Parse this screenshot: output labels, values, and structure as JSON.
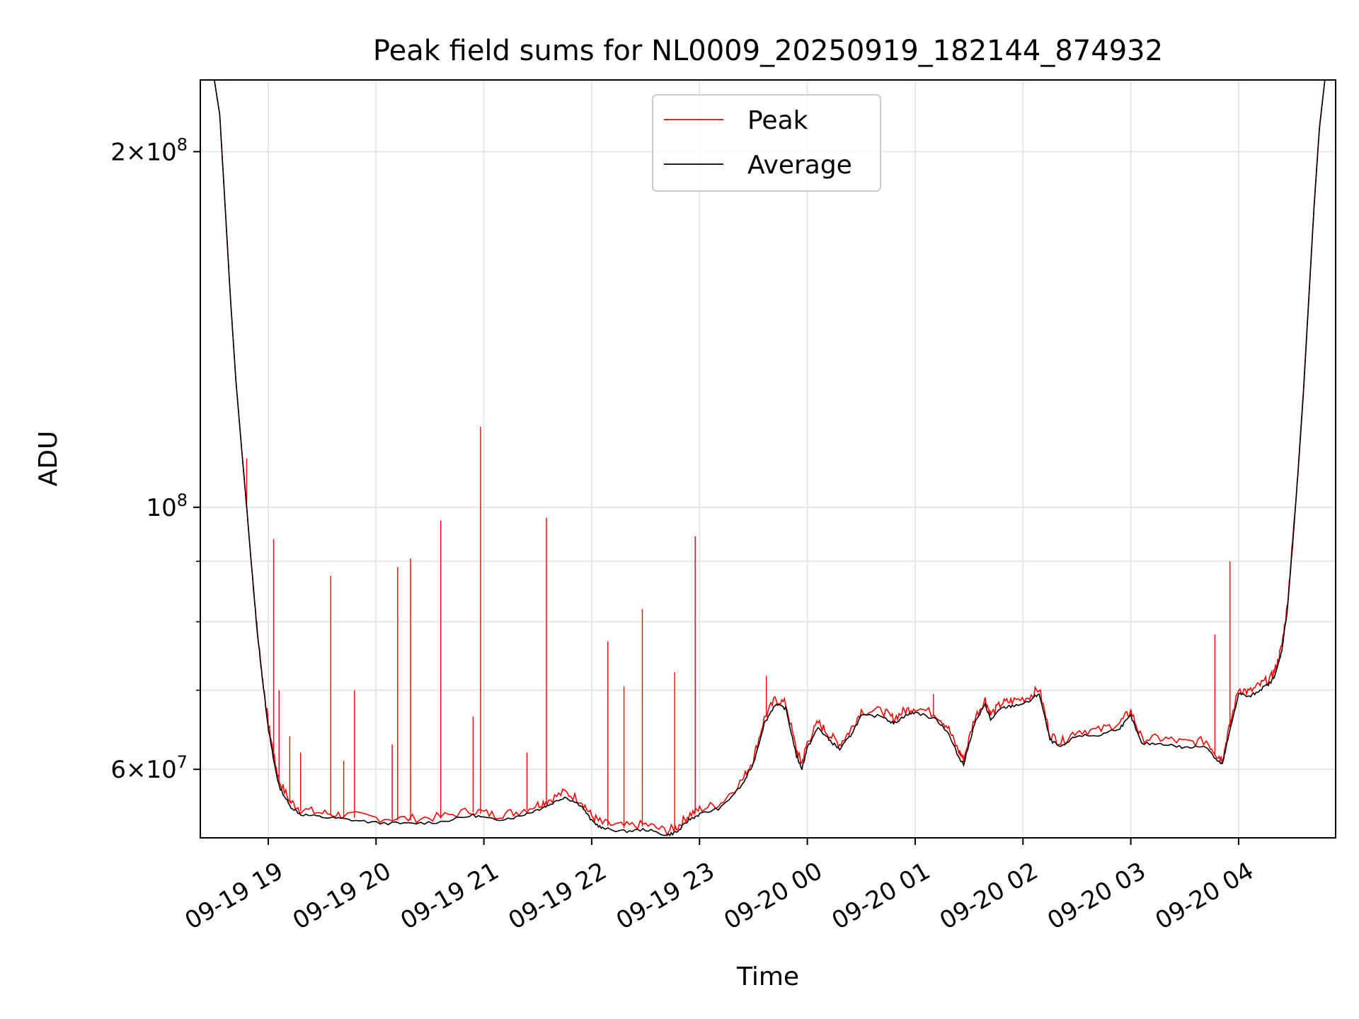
{
  "chart_data": {
    "type": "line",
    "title": "Peak field sums for NL0009_20250919_182144_874932",
    "xlabel": "Time",
    "ylabel": "ADU",
    "yscale": "log",
    "grid": true,
    "legend": {
      "placement": "top-center",
      "entries": [
        "Peak",
        "Average"
      ]
    },
    "xlim": [
      18.37,
      28.9
    ],
    "ylim": [
      52500000,
      230000000
    ],
    "x_ticks": [
      {
        "x": 19,
        "label": "09-19 19"
      },
      {
        "x": 20,
        "label": "09-19 20"
      },
      {
        "x": 21,
        "label": "09-19 21"
      },
      {
        "x": 22,
        "label": "09-19 22"
      },
      {
        "x": 23,
        "label": "09-19 23"
      },
      {
        "x": 24,
        "label": "09-20 00"
      },
      {
        "x": 25,
        "label": "09-20 01"
      },
      {
        "x": 26,
        "label": "09-20 02"
      },
      {
        "x": 27,
        "label": "09-20 03"
      },
      {
        "x": 28,
        "label": "09-20 04"
      }
    ],
    "y_major_ticks": [
      {
        "y": 60000000,
        "base": "6×10",
        "exp": "7"
      },
      {
        "y": 100000000,
        "base": "10",
        "exp": "8"
      },
      {
        "y": 200000000,
        "base": "2×10",
        "exp": "8"
      }
    ],
    "y_minor_ticks": [
      70000000,
      80000000,
      90000000
    ],
    "series": [
      {
        "name": "Peak",
        "color": "#ff0000",
        "points": [
          [
            18.5,
            230000000
          ],
          [
            18.55,
            215000000
          ],
          [
            18.6,
            180000000
          ],
          [
            18.65,
            150000000
          ],
          [
            18.7,
            128000000
          ],
          [
            18.75,
            113000000
          ],
          [
            18.8,
            100000000
          ],
          [
            18.85,
            88000000
          ],
          [
            18.9,
            78000000
          ],
          [
            18.95,
            71000000
          ],
          [
            19.0,
            65500000
          ],
          [
            19.05,
            61500000
          ],
          [
            19.1,
            58500000
          ],
          [
            19.2,
            56200000
          ],
          [
            19.3,
            55300000
          ],
          [
            19.5,
            54900000
          ],
          [
            19.7,
            54700000
          ],
          [
            20.0,
            54400000
          ],
          [
            20.3,
            54300000
          ],
          [
            20.6,
            54500000
          ],
          [
            20.9,
            55200000
          ],
          [
            21.1,
            54700000
          ],
          [
            21.3,
            55000000
          ],
          [
            21.5,
            55800000
          ],
          [
            21.6,
            56300000
          ],
          [
            21.75,
            57200000
          ],
          [
            21.9,
            56300000
          ],
          [
            22.0,
            54600000
          ],
          [
            22.1,
            53800000
          ],
          [
            22.3,
            53500000
          ],
          [
            22.5,
            53700000
          ],
          [
            22.7,
            53000000
          ],
          [
            22.8,
            53500000
          ],
          [
            22.9,
            54700000
          ],
          [
            23.0,
            55300000
          ],
          [
            23.2,
            56000000
          ],
          [
            23.4,
            58600000
          ],
          [
            23.5,
            61000000
          ],
          [
            23.6,
            66000000
          ],
          [
            23.7,
            68500000
          ],
          [
            23.8,
            68000000
          ],
          [
            23.9,
            62000000
          ],
          [
            23.95,
            60500000
          ],
          [
            24.0,
            63000000
          ],
          [
            24.1,
            65500000
          ],
          [
            24.2,
            64000000
          ],
          [
            24.3,
            62800000
          ],
          [
            24.4,
            64500000
          ],
          [
            24.5,
            67000000
          ],
          [
            24.7,
            67000000
          ],
          [
            24.8,
            66000000
          ],
          [
            24.9,
            67000000
          ],
          [
            25.0,
            67500000
          ],
          [
            25.2,
            66500000
          ],
          [
            25.3,
            65000000
          ],
          [
            25.4,
            62000000
          ],
          [
            25.45,
            61000000
          ],
          [
            25.55,
            66000000
          ],
          [
            25.65,
            68500000
          ],
          [
            25.7,
            66500000
          ],
          [
            25.8,
            68000000
          ],
          [
            25.9,
            68300000
          ],
          [
            26.05,
            68800000
          ],
          [
            26.15,
            70000000
          ],
          [
            26.25,
            64000000
          ],
          [
            26.35,
            63000000
          ],
          [
            26.5,
            64500000
          ],
          [
            26.7,
            64500000
          ],
          [
            26.9,
            65500000
          ],
          [
            27.0,
            67000000
          ],
          [
            27.1,
            63500000
          ],
          [
            27.3,
            63500000
          ],
          [
            27.5,
            63000000
          ],
          [
            27.7,
            63200000
          ],
          [
            27.8,
            61500000
          ],
          [
            27.85,
            61000000
          ],
          [
            27.9,
            64000000
          ],
          [
            28.0,
            70000000
          ],
          [
            28.1,
            69500000
          ],
          [
            28.2,
            70500000
          ],
          [
            28.3,
            71500000
          ],
          [
            28.35,
            73000000
          ],
          [
            28.4,
            76000000
          ],
          [
            28.45,
            82000000
          ],
          [
            28.5,
            93000000
          ],
          [
            28.55,
            107000000
          ],
          [
            28.6,
            125000000
          ],
          [
            28.65,
            150000000
          ],
          [
            28.7,
            180000000
          ],
          [
            28.75,
            210000000
          ],
          [
            28.8,
            230000000
          ]
        ],
        "spikes": [
          [
            18.8,
            110000000
          ],
          [
            19.05,
            94000000
          ],
          [
            19.1,
            70000000
          ],
          [
            19.2,
            64000000
          ],
          [
            19.3,
            62000000
          ],
          [
            19.58,
            87500000
          ],
          [
            19.7,
            61000000
          ],
          [
            19.8,
            70000000
          ],
          [
            20.15,
            63000000
          ],
          [
            20.2,
            89000000
          ],
          [
            20.32,
            90500000
          ],
          [
            20.6,
            97500000
          ],
          [
            20.6,
            60000000
          ],
          [
            20.9,
            66500000
          ],
          [
            20.97,
            117000000
          ],
          [
            21.4,
            62000000
          ],
          [
            21.58,
            98000000
          ],
          [
            22.15,
            77000000
          ],
          [
            22.3,
            70500000
          ],
          [
            22.47,
            82000000
          ],
          [
            22.77,
            72500000
          ],
          [
            22.96,
            94500000
          ],
          [
            23.62,
            72000000
          ],
          [
            25.17,
            69500000
          ],
          [
            27.78,
            78000000
          ],
          [
            27.92,
            90000000
          ]
        ]
      },
      {
        "name": "Average",
        "color": "#000000",
        "points": [
          [
            18.5,
            230000000
          ],
          [
            18.55,
            215000000
          ],
          [
            18.6,
            180000000
          ],
          [
            18.65,
            150000000
          ],
          [
            18.7,
            128000000
          ],
          [
            18.75,
            113000000
          ],
          [
            18.8,
            100000000
          ],
          [
            18.85,
            88000000
          ],
          [
            18.9,
            78000000
          ],
          [
            18.95,
            71000000
          ],
          [
            19.0,
            65000000
          ],
          [
            19.05,
            61000000
          ],
          [
            19.1,
            58000000
          ],
          [
            19.2,
            55800000
          ],
          [
            19.3,
            54900000
          ],
          [
            19.5,
            54600000
          ],
          [
            19.7,
            54400000
          ],
          [
            20.0,
            54000000
          ],
          [
            20.3,
            53900000
          ],
          [
            20.6,
            54100000
          ],
          [
            20.9,
            54800000
          ],
          [
            21.1,
            54300000
          ],
          [
            21.3,
            54600000
          ],
          [
            21.5,
            55400000
          ],
          [
            21.6,
            55900000
          ],
          [
            21.75,
            56800000
          ],
          [
            21.9,
            55900000
          ],
          [
            22.0,
            54200000
          ],
          [
            22.1,
            53400000
          ],
          [
            22.3,
            53100000
          ],
          [
            22.5,
            53300000
          ],
          [
            22.7,
            52700000
          ],
          [
            22.8,
            53100000
          ],
          [
            22.9,
            54300000
          ],
          [
            23.0,
            54900000
          ],
          [
            23.2,
            55600000
          ],
          [
            23.4,
            58200000
          ],
          [
            23.5,
            60600000
          ],
          [
            23.6,
            65500000
          ],
          [
            23.7,
            68000000
          ],
          [
            23.8,
            67500000
          ],
          [
            23.9,
            61500000
          ],
          [
            23.95,
            60000000
          ],
          [
            24.0,
            62500000
          ],
          [
            24.1,
            65000000
          ],
          [
            24.2,
            63500000
          ],
          [
            24.3,
            62300000
          ],
          [
            24.4,
            64000000
          ],
          [
            24.5,
            66500000
          ],
          [
            24.7,
            66500000
          ],
          [
            24.8,
            65500000
          ],
          [
            24.9,
            66500000
          ],
          [
            25.0,
            67000000
          ],
          [
            25.2,
            66000000
          ],
          [
            25.3,
            64500000
          ],
          [
            25.4,
            61500000
          ],
          [
            25.45,
            60500000
          ],
          [
            25.55,
            65500000
          ],
          [
            25.65,
            68000000
          ],
          [
            25.7,
            66000000
          ],
          [
            25.8,
            67500000
          ],
          [
            25.9,
            67800000
          ],
          [
            26.05,
            68300000
          ],
          [
            26.15,
            69500000
          ],
          [
            26.25,
            63500000
          ],
          [
            26.35,
            62500000
          ],
          [
            26.5,
            64000000
          ],
          [
            26.7,
            64000000
          ],
          [
            26.9,
            65000000
          ],
          [
            27.0,
            66500000
          ],
          [
            27.1,
            63000000
          ],
          [
            27.3,
            63000000
          ],
          [
            27.5,
            62500000
          ],
          [
            27.7,
            62700000
          ],
          [
            27.8,
            61000000
          ],
          [
            27.85,
            60500000
          ],
          [
            27.9,
            63500000
          ],
          [
            28.0,
            69500000
          ],
          [
            28.1,
            69000000
          ],
          [
            28.2,
            70000000
          ],
          [
            28.3,
            71000000
          ],
          [
            28.35,
            72500000
          ],
          [
            28.4,
            75500000
          ],
          [
            28.45,
            81500000
          ],
          [
            28.5,
            92500000
          ],
          [
            28.55,
            106500000
          ],
          [
            28.6,
            124500000
          ],
          [
            28.65,
            149500000
          ],
          [
            28.7,
            179500000
          ],
          [
            28.75,
            209500000
          ],
          [
            28.8,
            230000000
          ]
        ]
      }
    ]
  }
}
